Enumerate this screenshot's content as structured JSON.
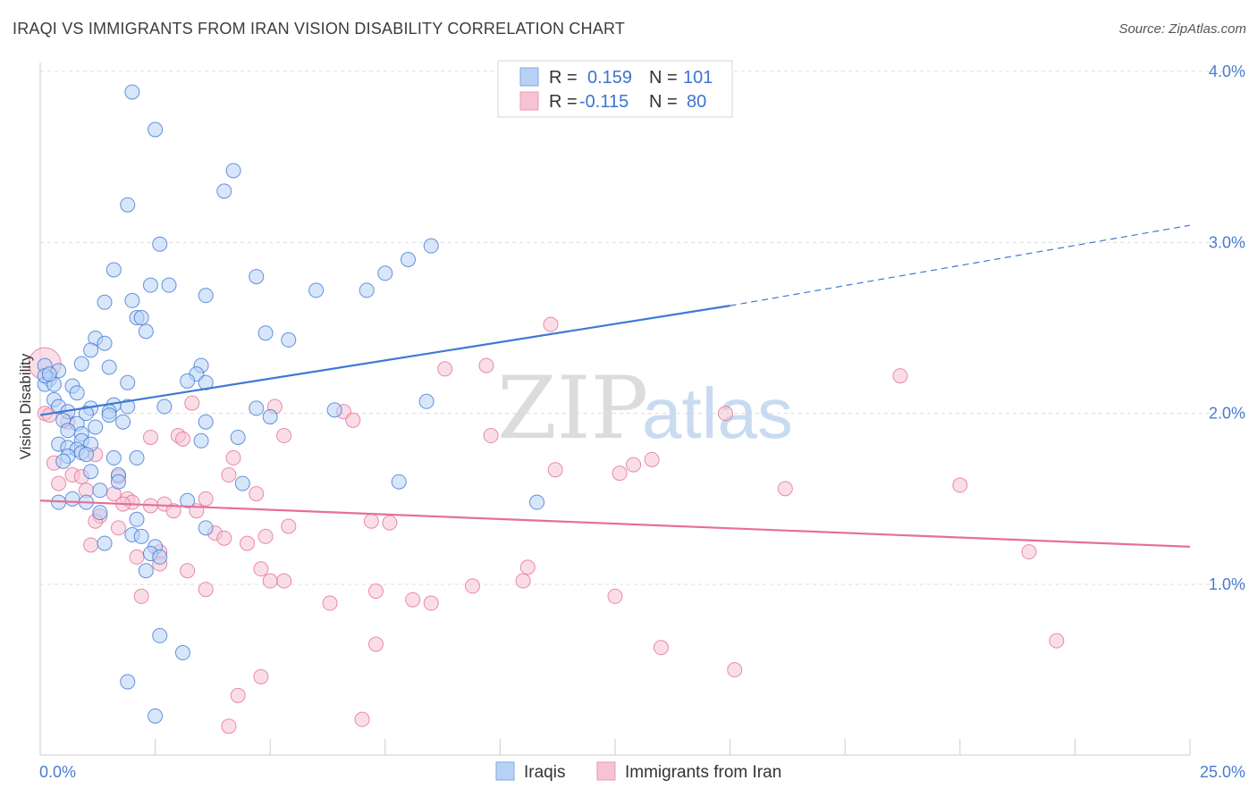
{
  "title": "IRAQI VS IMMIGRANTS FROM IRAN VISION DISABILITY CORRELATION CHART",
  "source": "Source: ZipAtlas.com",
  "watermark": {
    "part1": "ZIP",
    "part2": "atlas"
  },
  "colors": {
    "blue": "#3f78d6",
    "blue_fill": "#b8d2f5",
    "pink": "#e66f98",
    "pink_fill": "#f6c3d4",
    "tick": "#4a7bd0"
  },
  "legend": {
    "rows": [
      {
        "r_label": "R =",
        "r_value": "0.159",
        "n_label": "N =",
        "n_value": "101"
      },
      {
        "r_label": "R =",
        "r_value": "-0.115",
        "n_label": "N =",
        "n_value": "80"
      }
    ]
  },
  "chart_data": {
    "type": "scatter",
    "ylabel": "Vision Disability",
    "xlabel": "",
    "xlim": [
      0,
      25
    ],
    "ylim": [
      0,
      4.1
    ],
    "x_ticks": [
      "0.0%",
      "25.0%"
    ],
    "y_ticks": [
      {
        "value": 1.0,
        "label": "1.0%"
      },
      {
        "value": 2.0,
        "label": "2.0%"
      },
      {
        "value": 3.0,
        "label": "3.0%"
      },
      {
        "value": 4.0,
        "label": "4.0%"
      }
    ],
    "grid": true,
    "legend_position": "top-center",
    "series": [
      {
        "name": "Iraqis",
        "color": "#3f78d6",
        "fill": "#b8d2f5",
        "trend": {
          "x": [
            0.0,
            15.0
          ],
          "y": [
            1.99,
            2.63
          ],
          "dashed_to": [
            25.0,
            3.1
          ]
        },
        "points": [
          [
            2.0,
            3.88
          ],
          [
            2.5,
            3.66
          ],
          [
            4.2,
            3.42
          ],
          [
            4.0,
            3.3
          ],
          [
            1.9,
            3.22
          ],
          [
            2.6,
            2.99
          ],
          [
            8.5,
            2.98
          ],
          [
            8.0,
            2.9
          ],
          [
            1.6,
            2.84
          ],
          [
            7.5,
            2.82
          ],
          [
            4.7,
            2.8
          ],
          [
            2.4,
            2.75
          ],
          [
            2.8,
            2.75
          ],
          [
            7.1,
            2.72
          ],
          [
            6.0,
            2.72
          ],
          [
            3.6,
            2.69
          ],
          [
            2.0,
            2.66
          ],
          [
            1.4,
            2.65
          ],
          [
            2.1,
            2.56
          ],
          [
            2.2,
            2.56
          ],
          [
            2.3,
            2.48
          ],
          [
            4.9,
            2.47
          ],
          [
            5.4,
            2.43
          ],
          [
            1.2,
            2.44
          ],
          [
            1.4,
            2.41
          ],
          [
            1.1,
            2.37
          ],
          [
            0.1,
            2.28
          ],
          [
            0.9,
            2.29
          ],
          [
            3.5,
            2.28
          ],
          [
            0.4,
            2.25
          ],
          [
            1.5,
            2.27
          ],
          [
            3.4,
            2.23
          ],
          [
            0.2,
            2.2
          ],
          [
            3.2,
            2.19
          ],
          [
            1.9,
            2.18
          ],
          [
            0.1,
            2.17
          ],
          [
            0.3,
            2.17
          ],
          [
            0.7,
            2.16
          ],
          [
            3.6,
            2.18
          ],
          [
            0.8,
            2.12
          ],
          [
            0.3,
            2.08
          ],
          [
            0.4,
            2.04
          ],
          [
            1.6,
            2.05
          ],
          [
            1.9,
            2.04
          ],
          [
            2.7,
            2.04
          ],
          [
            1.1,
            2.03
          ],
          [
            4.7,
            2.03
          ],
          [
            0.6,
            2.01
          ],
          [
            1.5,
            2.01
          ],
          [
            6.4,
            2.02
          ],
          [
            8.4,
            2.07
          ],
          [
            1.5,
            1.99
          ],
          [
            5.0,
            1.98
          ],
          [
            0.5,
            1.96
          ],
          [
            1.8,
            1.95
          ],
          [
            3.6,
            1.95
          ],
          [
            0.8,
            1.94
          ],
          [
            1.2,
            1.92
          ],
          [
            0.9,
            1.88
          ],
          [
            0.6,
            1.9
          ],
          [
            0.4,
            1.82
          ],
          [
            0.9,
            1.84
          ],
          [
            1.1,
            1.82
          ],
          [
            3.5,
            1.84
          ],
          [
            4.3,
            1.86
          ],
          [
            0.6,
            1.8
          ],
          [
            0.8,
            1.79
          ],
          [
            0.9,
            1.77
          ],
          [
            1.0,
            1.76
          ],
          [
            0.6,
            1.75
          ],
          [
            1.6,
            1.74
          ],
          [
            2.1,
            1.74
          ],
          [
            1.1,
            1.66
          ],
          [
            1.7,
            1.64
          ],
          [
            1.7,
            1.6
          ],
          [
            7.8,
            1.6
          ],
          [
            4.4,
            1.59
          ],
          [
            0.4,
            1.48
          ],
          [
            1.0,
            1.48
          ],
          [
            3.2,
            1.49
          ],
          [
            10.8,
            1.48
          ],
          [
            1.3,
            1.42
          ],
          [
            2.1,
            1.38
          ],
          [
            3.6,
            1.33
          ],
          [
            2.0,
            1.29
          ],
          [
            1.4,
            1.24
          ],
          [
            2.5,
            1.22
          ],
          [
            2.4,
            1.18
          ],
          [
            2.6,
            1.16
          ],
          [
            2.3,
            1.08
          ],
          [
            2.6,
            0.7
          ],
          [
            3.1,
            0.6
          ],
          [
            1.9,
            0.43
          ],
          [
            2.5,
            0.23
          ],
          [
            0.1,
            2.22
          ],
          [
            0.2,
            2.23
          ],
          [
            1.0,
            2.0
          ],
          [
            1.3,
            1.55
          ],
          [
            0.5,
            1.72
          ],
          [
            2.2,
            1.28
          ],
          [
            0.7,
            1.5
          ]
        ]
      },
      {
        "name": "Immigrants from Iran",
        "color": "#e66f98",
        "fill": "#f6c3d4",
        "trend": {
          "x": [
            0.0,
            25.0
          ],
          "y": [
            1.49,
            1.22
          ]
        },
        "points": [
          [
            0.1,
            2.29
          ],
          [
            11.1,
            2.52
          ],
          [
            9.7,
            2.28
          ],
          [
            8.8,
            2.26
          ],
          [
            18.7,
            2.22
          ],
          [
            3.3,
            2.06
          ],
          [
            5.1,
            2.04
          ],
          [
            6.6,
            2.01
          ],
          [
            0.1,
            2.0
          ],
          [
            0.2,
            1.99
          ],
          [
            14.9,
            2.0
          ],
          [
            6.8,
            1.96
          ],
          [
            0.6,
            1.95
          ],
          [
            9.8,
            1.87
          ],
          [
            3.0,
            1.87
          ],
          [
            5.3,
            1.87
          ],
          [
            2.4,
            1.86
          ],
          [
            3.1,
            1.85
          ],
          [
            1.2,
            1.76
          ],
          [
            13.3,
            1.73
          ],
          [
            4.2,
            1.74
          ],
          [
            0.3,
            1.71
          ],
          [
            12.9,
            1.7
          ],
          [
            11.2,
            1.67
          ],
          [
            12.6,
            1.65
          ],
          [
            4.1,
            1.64
          ],
          [
            0.7,
            1.64
          ],
          [
            0.9,
            1.63
          ],
          [
            1.7,
            1.63
          ],
          [
            0.4,
            1.59
          ],
          [
            20.0,
            1.58
          ],
          [
            16.2,
            1.56
          ],
          [
            1.0,
            1.55
          ],
          [
            4.7,
            1.53
          ],
          [
            1.6,
            1.53
          ],
          [
            1.9,
            1.5
          ],
          [
            3.6,
            1.5
          ],
          [
            2.0,
            1.48
          ],
          [
            2.7,
            1.47
          ],
          [
            1.8,
            1.47
          ],
          [
            2.4,
            1.46
          ],
          [
            2.9,
            1.43
          ],
          [
            3.4,
            1.43
          ],
          [
            1.3,
            1.4
          ],
          [
            1.2,
            1.37
          ],
          [
            7.2,
            1.37
          ],
          [
            7.6,
            1.36
          ],
          [
            5.4,
            1.34
          ],
          [
            1.7,
            1.33
          ],
          [
            3.8,
            1.3
          ],
          [
            4.9,
            1.28
          ],
          [
            4.0,
            1.27
          ],
          [
            4.5,
            1.24
          ],
          [
            1.1,
            1.23
          ],
          [
            2.6,
            1.19
          ],
          [
            21.5,
            1.19
          ],
          [
            2.1,
            1.16
          ],
          [
            2.6,
            1.12
          ],
          [
            10.6,
            1.1
          ],
          [
            4.8,
            1.09
          ],
          [
            3.2,
            1.08
          ],
          [
            5.3,
            1.02
          ],
          [
            5.0,
            1.02
          ],
          [
            10.5,
            1.02
          ],
          [
            9.4,
            0.99
          ],
          [
            3.6,
            0.97
          ],
          [
            7.3,
            0.96
          ],
          [
            2.2,
            0.93
          ],
          [
            12.5,
            0.93
          ],
          [
            8.1,
            0.91
          ],
          [
            8.5,
            0.89
          ],
          [
            6.3,
            0.89
          ],
          [
            22.1,
            0.67
          ],
          [
            7.3,
            0.65
          ],
          [
            13.5,
            0.63
          ],
          [
            15.1,
            0.5
          ],
          [
            4.8,
            0.46
          ],
          [
            4.3,
            0.35
          ],
          [
            7.0,
            0.21
          ],
          [
            4.1,
            0.17
          ]
        ]
      }
    ]
  }
}
